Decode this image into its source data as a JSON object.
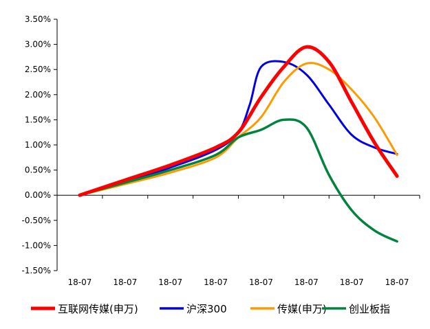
{
  "chart_data": {
    "type": "line",
    "categories": [
      "18-07",
      "18-07",
      "18-07",
      "18-07",
      "18-07",
      "18-07",
      "18-07",
      "18-07"
    ],
    "ylim": [
      -1.5,
      3.5
    ],
    "y_ticks": [
      "3.50%",
      "3.00%",
      "2.50%",
      "2.00%",
      "1.50%",
      "1.00%",
      "0.50%",
      "0.00%",
      "-0.50%",
      "-1.00%",
      "-1.50%"
    ],
    "grid": false,
    "legend_position": "bottom",
    "series": [
      {
        "name": "互联网传媒(申万)",
        "color": "#ff0000",
        "x": [
          0,
          1,
          2,
          3,
          3.5,
          4,
          4.5,
          5,
          5.5,
          6,
          6.5,
          7
        ],
        "values": [
          0.0,
          0.3,
          0.6,
          0.95,
          1.25,
          1.95,
          2.55,
          2.95,
          2.65,
          1.85,
          1.05,
          0.38
        ]
      },
      {
        "name": "沪深300",
        "color": "#0000e6",
        "x": [
          0,
          1,
          2,
          3,
          3.5,
          3.75,
          4,
          4.5,
          5,
          5.5,
          6,
          6.5,
          7
        ],
        "values": [
          0.0,
          0.25,
          0.55,
          0.9,
          1.25,
          1.8,
          2.55,
          2.65,
          2.4,
          1.8,
          1.2,
          0.95,
          0.82
        ]
      },
      {
        "name": "传媒(申万)",
        "color": "#ff9900",
        "x": [
          0,
          1,
          2,
          3,
          3.5,
          4,
          4.5,
          5,
          5.5,
          6,
          6.5,
          7
        ],
        "values": [
          0.0,
          0.22,
          0.45,
          0.75,
          1.15,
          1.55,
          2.25,
          2.62,
          2.5,
          2.1,
          1.55,
          0.8
        ]
      },
      {
        "name": "创业板指",
        "color": "#00843d",
        "x": [
          0,
          1,
          2,
          3,
          3.5,
          4,
          4.5,
          5,
          5.5,
          6,
          6.5,
          7
        ],
        "values": [
          0.0,
          0.25,
          0.5,
          0.8,
          1.15,
          1.3,
          1.5,
          1.35,
          0.4,
          -0.3,
          -0.7,
          -0.92
        ]
      }
    ]
  }
}
